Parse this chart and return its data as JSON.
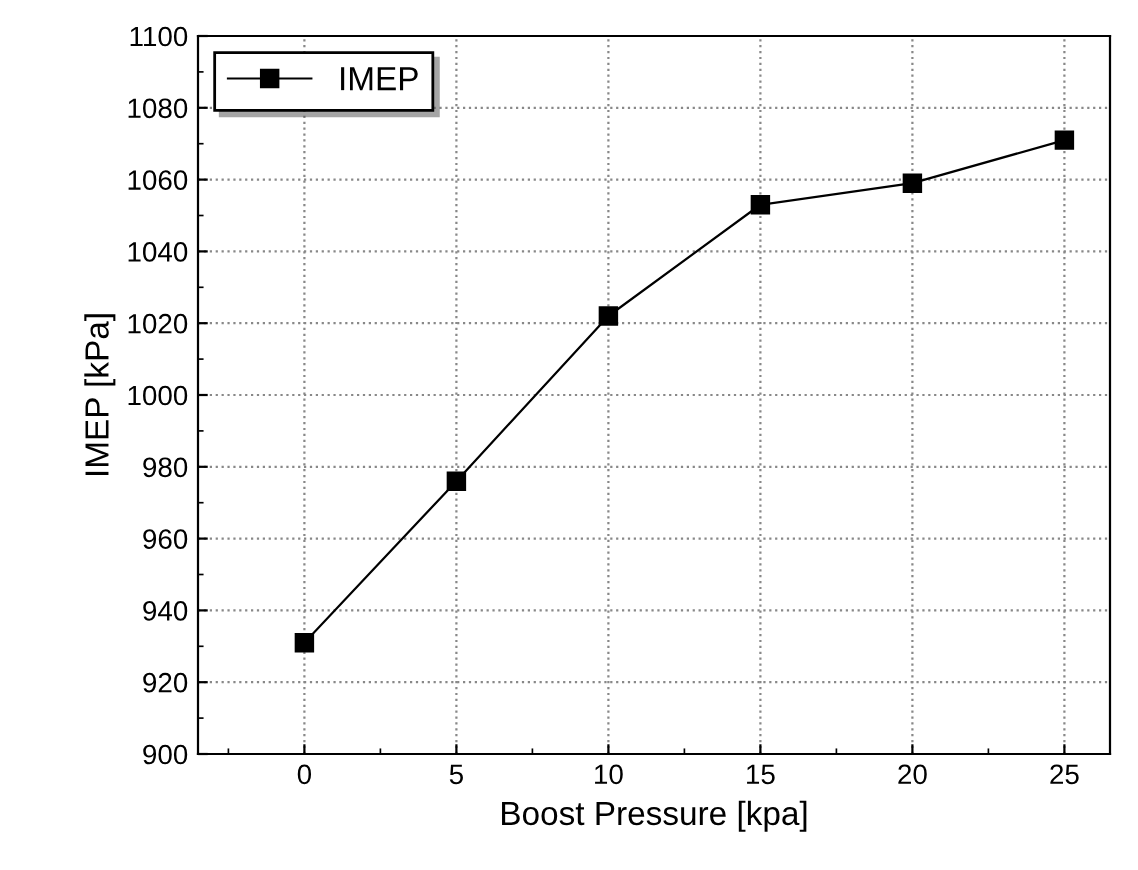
{
  "chart_data": {
    "type": "line",
    "xlabel": "Boost Pressure [kpa]",
    "ylabel": "IMEP [kPa]",
    "x": [
      0,
      5,
      10,
      15,
      20,
      25
    ],
    "series": [
      {
        "name": "IMEP",
        "color": "#000000",
        "values": [
          931,
          976,
          1022,
          1053,
          1059,
          1071
        ]
      }
    ],
    "xlim": [
      -3.5,
      26.5
    ],
    "xticks": [
      0,
      5,
      10,
      15,
      20,
      25
    ],
    "ylim": [
      900,
      1100
    ],
    "yticks": [
      900,
      920,
      940,
      960,
      980,
      1000,
      1020,
      1040,
      1060,
      1080,
      1100
    ],
    "grid": true,
    "legend": "top left",
    "marker": "square",
    "line_style": "solid"
  }
}
